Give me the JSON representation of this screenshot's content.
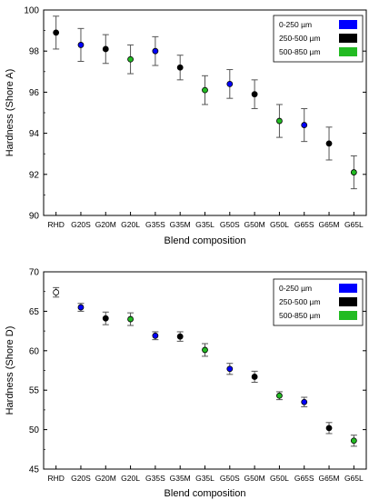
{
  "chart_data": [
    {
      "type": "scatter",
      "xlabel": "Blend composition",
      "ylabel": "Hardness (Shore A)",
      "ylim": [
        90,
        100
      ],
      "yticks": [
        90,
        92,
        94,
        96,
        98,
        100
      ],
      "grid": false,
      "legend_position": "top-right",
      "categories": [
        "RHD",
        "G20S",
        "G20M",
        "G20L",
        "G35S",
        "G35M",
        "G35L",
        "G50S",
        "G50M",
        "G50L",
        "G65S",
        "G65M",
        "G65L"
      ],
      "legend": [
        {
          "label": "0-250 µm",
          "color": "#0000ff"
        },
        {
          "label": "250-500 µm",
          "color": "#000000"
        },
        {
          "label": "500-850 µm",
          "color": "#22bb22"
        }
      ],
      "points": [
        {
          "x": "RHD",
          "y": 98.9,
          "err": 0.8,
          "color": "#000000"
        },
        {
          "x": "G20S",
          "y": 98.3,
          "err": 0.8,
          "color": "#0000ff"
        },
        {
          "x": "G20M",
          "y": 98.1,
          "err": 0.7,
          "color": "#000000"
        },
        {
          "x": "G20L",
          "y": 97.6,
          "err": 0.7,
          "color": "#22bb22"
        },
        {
          "x": "G35S",
          "y": 98.0,
          "err": 0.7,
          "color": "#0000ff"
        },
        {
          "x": "G35M",
          "y": 97.2,
          "err": 0.6,
          "color": "#000000"
        },
        {
          "x": "G35L",
          "y": 96.1,
          "err": 0.7,
          "color": "#22bb22"
        },
        {
          "x": "G50S",
          "y": 96.4,
          "err": 0.7,
          "color": "#0000ff"
        },
        {
          "x": "G50M",
          "y": 95.9,
          "err": 0.7,
          "color": "#000000"
        },
        {
          "x": "G50L",
          "y": 94.6,
          "err": 0.8,
          "color": "#22bb22"
        },
        {
          "x": "G65S",
          "y": 94.4,
          "err": 0.8,
          "color": "#0000ff"
        },
        {
          "x": "G65M",
          "y": 93.5,
          "err": 0.8,
          "color": "#000000"
        },
        {
          "x": "G65L",
          "y": 92.1,
          "err": 0.8,
          "color": "#22bb22"
        }
      ]
    },
    {
      "type": "scatter",
      "xlabel": "Blend composition",
      "ylabel": "Hardness (Shore D)",
      "ylim": [
        45,
        70
      ],
      "yticks": [
        45,
        50,
        55,
        60,
        65,
        70
      ],
      "grid": false,
      "legend_position": "top-right",
      "categories": [
        "RHD",
        "G20S",
        "G20M",
        "G20L",
        "G35S",
        "G35M",
        "G35L",
        "G50S",
        "G50M",
        "G50L",
        "G65S",
        "G65M",
        "G65L"
      ],
      "legend": [
        {
          "label": "0-250 µm",
          "color": "#0000ff"
        },
        {
          "label": "250-500 µm",
          "color": "#000000"
        },
        {
          "label": "500-850 µm",
          "color": "#22bb22"
        }
      ],
      "points": [
        {
          "x": "RHD",
          "y": 67.4,
          "err": 0.6,
          "color": "#ffffff"
        },
        {
          "x": "G20S",
          "y": 65.5,
          "err": 0.5,
          "color": "#0000ff"
        },
        {
          "x": "G20M",
          "y": 64.1,
          "err": 0.8,
          "color": "#000000"
        },
        {
          "x": "G20L",
          "y": 64.0,
          "err": 0.8,
          "color": "#22bb22"
        },
        {
          "x": "G35S",
          "y": 61.9,
          "err": 0.5,
          "color": "#0000ff"
        },
        {
          "x": "G35M",
          "y": 61.8,
          "err": 0.6,
          "color": "#000000"
        },
        {
          "x": "G35L",
          "y": 60.1,
          "err": 0.8,
          "color": "#22bb22"
        },
        {
          "x": "G50S",
          "y": 57.7,
          "err": 0.7,
          "color": "#0000ff"
        },
        {
          "x": "G50M",
          "y": 56.7,
          "err": 0.7,
          "color": "#000000"
        },
        {
          "x": "G50L",
          "y": 54.3,
          "err": 0.5,
          "color": "#22bb22"
        },
        {
          "x": "G65S",
          "y": 53.5,
          "err": 0.6,
          "color": "#0000ff"
        },
        {
          "x": "G65M",
          "y": 50.2,
          "err": 0.7,
          "color": "#000000"
        },
        {
          "x": "G65L",
          "y": 48.6,
          "err": 0.7,
          "color": "#22bb22"
        }
      ]
    }
  ]
}
